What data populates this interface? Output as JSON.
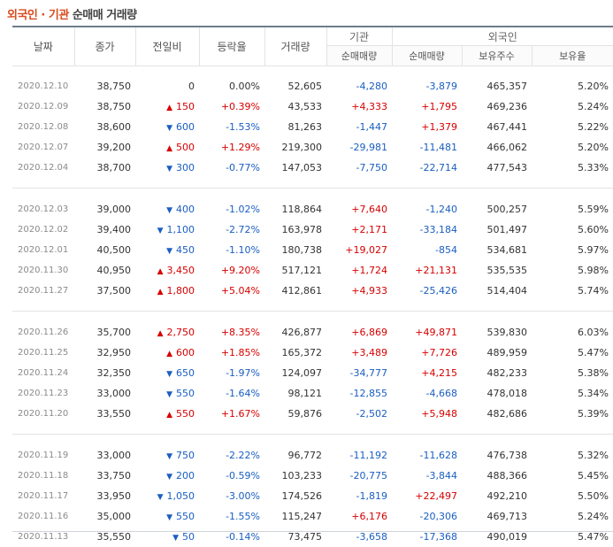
{
  "header": {
    "part1": "외국인",
    "dot": " · ",
    "part2": "기관",
    "part3": " 순매매 거래량"
  },
  "columns": {
    "date": "날짜",
    "close": "종가",
    "change": "전일비",
    "rate": "등락율",
    "volume": "거래량",
    "inst_group": "기관",
    "inst_net": "순매매량",
    "foreign_group": "외국인",
    "foreign_net": "순매매량",
    "foreign_hold": "보유주수",
    "foreign_ratio": "보유율"
  },
  "rows": [
    {
      "date": "2020.12.10",
      "close": "38,750",
      "change": "0",
      "dir": "zero",
      "arrow": "",
      "rate": "0.00%",
      "volume": "52,605",
      "inst": "-4,280",
      "foreign_net": "-3,879",
      "hold": "465,357",
      "ratio": "5.20%"
    },
    {
      "date": "2020.12.09",
      "close": "38,750",
      "change": "150",
      "dir": "up",
      "arrow": "▲",
      "rate": "+0.39%",
      "volume": "43,533",
      "inst": "+4,333",
      "foreign_net": "+1,795",
      "hold": "469,236",
      "ratio": "5.24%"
    },
    {
      "date": "2020.12.08",
      "close": "38,600",
      "change": "600",
      "dir": "down",
      "arrow": "▼",
      "rate": "-1.53%",
      "volume": "81,263",
      "inst": "-1,447",
      "foreign_net": "+1,379",
      "hold": "467,441",
      "ratio": "5.22%"
    },
    {
      "date": "2020.12.07",
      "close": "39,200",
      "change": "500",
      "dir": "up",
      "arrow": "▲",
      "rate": "+1.29%",
      "volume": "219,300",
      "inst": "-29,981",
      "foreign_net": "-11,481",
      "hold": "466,062",
      "ratio": "5.20%"
    },
    {
      "date": "2020.12.04",
      "close": "38,700",
      "change": "300",
      "dir": "down",
      "arrow": "▼",
      "rate": "-0.77%",
      "volume": "147,053",
      "inst": "-7,750",
      "foreign_net": "-22,714",
      "hold": "477,543",
      "ratio": "5.33%"
    },
    {
      "date": "2020.12.03",
      "close": "39,000",
      "change": "400",
      "dir": "down",
      "arrow": "▼",
      "rate": "-1.02%",
      "volume": "118,864",
      "inst": "+7,640",
      "foreign_net": "-1,240",
      "hold": "500,257",
      "ratio": "5.59%"
    },
    {
      "date": "2020.12.02",
      "close": "39,400",
      "change": "1,100",
      "dir": "down",
      "arrow": "▼",
      "rate": "-2.72%",
      "volume": "163,978",
      "inst": "+2,171",
      "foreign_net": "-33,184",
      "hold": "501,497",
      "ratio": "5.60%"
    },
    {
      "date": "2020.12.01",
      "close": "40,500",
      "change": "450",
      "dir": "down",
      "arrow": "▼",
      "rate": "-1.10%",
      "volume": "180,738",
      "inst": "+19,027",
      "foreign_net": "-854",
      "hold": "534,681",
      "ratio": "5.97%"
    },
    {
      "date": "2020.11.30",
      "close": "40,950",
      "change": "3,450",
      "dir": "up",
      "arrow": "▲",
      "rate": "+9.20%",
      "volume": "517,121",
      "inst": "+1,724",
      "foreign_net": "+21,131",
      "hold": "535,535",
      "ratio": "5.98%"
    },
    {
      "date": "2020.11.27",
      "close": "37,500",
      "change": "1,800",
      "dir": "up",
      "arrow": "▲",
      "rate": "+5.04%",
      "volume": "412,861",
      "inst": "+4,933",
      "foreign_net": "-25,426",
      "hold": "514,404",
      "ratio": "5.74%"
    },
    {
      "date": "2020.11.26",
      "close": "35,700",
      "change": "2,750",
      "dir": "up",
      "arrow": "▲",
      "rate": "+8.35%",
      "volume": "426,877",
      "inst": "+6,869",
      "foreign_net": "+49,871",
      "hold": "539,830",
      "ratio": "6.03%"
    },
    {
      "date": "2020.11.25",
      "close": "32,950",
      "change": "600",
      "dir": "up",
      "arrow": "▲",
      "rate": "+1.85%",
      "volume": "165,372",
      "inst": "+3,489",
      "foreign_net": "+7,726",
      "hold": "489,959",
      "ratio": "5.47%"
    },
    {
      "date": "2020.11.24",
      "close": "32,350",
      "change": "650",
      "dir": "down",
      "arrow": "▼",
      "rate": "-1.97%",
      "volume": "124,097",
      "inst": "-34,777",
      "foreign_net": "+4,215",
      "hold": "482,233",
      "ratio": "5.38%"
    },
    {
      "date": "2020.11.23",
      "close": "33,000",
      "change": "550",
      "dir": "down",
      "arrow": "▼",
      "rate": "-1.64%",
      "volume": "98,121",
      "inst": "-12,855",
      "foreign_net": "-4,668",
      "hold": "478,018",
      "ratio": "5.34%"
    },
    {
      "date": "2020.11.20",
      "close": "33,550",
      "change": "550",
      "dir": "up",
      "arrow": "▲",
      "rate": "+1.67%",
      "volume": "59,876",
      "inst": "-2,502",
      "foreign_net": "+5,948",
      "hold": "482,686",
      "ratio": "5.39%"
    },
    {
      "date": "2020.11.19",
      "close": "33,000",
      "change": "750",
      "dir": "down",
      "arrow": "▼",
      "rate": "-2.22%",
      "volume": "96,772",
      "inst": "-11,192",
      "foreign_net": "-11,628",
      "hold": "476,738",
      "ratio": "5.32%"
    },
    {
      "date": "2020.11.18",
      "close": "33,750",
      "change": "200",
      "dir": "down",
      "arrow": "▼",
      "rate": "-0.59%",
      "volume": "103,233",
      "inst": "-20,775",
      "foreign_net": "-3,844",
      "hold": "488,366",
      "ratio": "5.45%"
    },
    {
      "date": "2020.11.17",
      "close": "33,950",
      "change": "1,050",
      "dir": "down",
      "arrow": "▼",
      "rate": "-3.00%",
      "volume": "174,526",
      "inst": "-1,819",
      "foreign_net": "+22,497",
      "hold": "492,210",
      "ratio": "5.50%"
    },
    {
      "date": "2020.11.16",
      "close": "35,000",
      "change": "550",
      "dir": "down",
      "arrow": "▼",
      "rate": "-1.55%",
      "volume": "115,247",
      "inst": "+6,176",
      "foreign_net": "-20,306",
      "hold": "469,713",
      "ratio": "5.24%"
    },
    {
      "date": "2020.11.13",
      "close": "35,550",
      "change": "50",
      "dir": "down",
      "arrow": "▼",
      "rate": "-0.14%",
      "volume": "73,475",
      "inst": "-3,658",
      "foreign_net": "-17,368",
      "hold": "490,019",
      "ratio": "5.47%"
    }
  ],
  "colors": {
    "up": "#d60000",
    "down": "#1a5ec1",
    "title_accent": "#d94c1f"
  }
}
